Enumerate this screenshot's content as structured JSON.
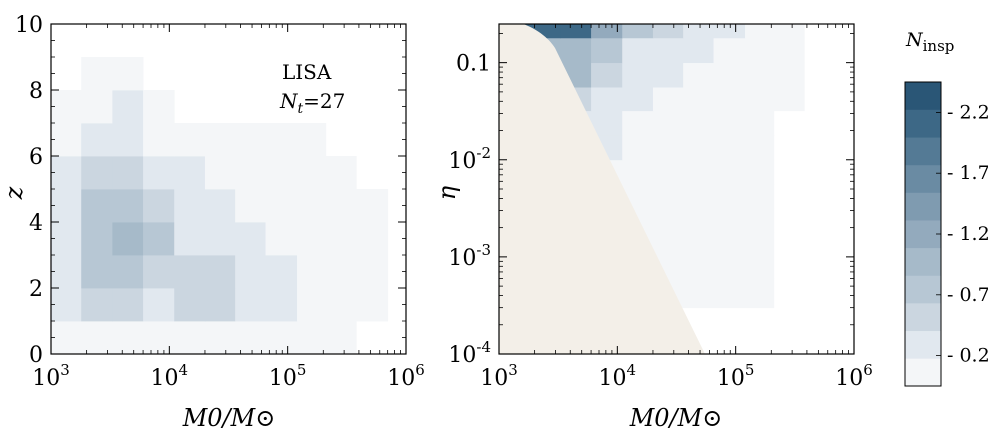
{
  "chart_data": [
    {
      "type": "heatmap",
      "panel": "left",
      "xlabel": "M0/M⊙",
      "ylabel": "z",
      "xscale": "log",
      "xlim": [
        1000,
        1000000
      ],
      "ylim": [
        0,
        10
      ],
      "x_ticks": [
        {
          "base": "10",
          "exp": "3"
        },
        {
          "base": "10",
          "exp": "4"
        },
        {
          "base": "10",
          "exp": "5"
        },
        {
          "base": "10",
          "exp": "6"
        }
      ],
      "y_ticks": [
        "0",
        "2",
        "4",
        "6",
        "8",
        "10"
      ],
      "annotation": {
        "line1": "LISA",
        "line2_symbol": "N",
        "line2_sub": "t",
        "line2_value": "=27"
      },
      "x_bin_edges": [
        1000,
        1800,
        3300,
        6000,
        11000,
        20000,
        36000,
        65000,
        120000,
        210000,
        380000,
        700000
      ],
      "y_bin_edges": [
        0,
        1,
        2,
        3,
        4,
        5,
        6,
        7,
        8,
        9,
        10
      ],
      "cells": [
        [
          0.18,
          0.22,
          0.22,
          0.15,
          0.12,
          0.1,
          0.1,
          0.08,
          0.06,
          0.04,
          0.02
        ],
        [
          0.35,
          0.5,
          0.5,
          0.42,
          0.55,
          0.55,
          0.4,
          0.3,
          0.2,
          0.1,
          0.05
        ],
        [
          0.3,
          0.75,
          0.8,
          0.65,
          0.6,
          0.65,
          0.45,
          0.3,
          0.22,
          0.1,
          0.05
        ],
        [
          0.45,
          0.9,
          1.05,
          0.8,
          0.45,
          0.4,
          0.28,
          0.2,
          0.15,
          0.08,
          0.03
        ],
        [
          0.35,
          0.8,
          0.75,
          0.55,
          0.35,
          0.3,
          0.22,
          0.15,
          0.1,
          0.06,
          0.03
        ],
        [
          0.28,
          0.6,
          0.55,
          0.4,
          0.3,
          0.22,
          0.15,
          0.12,
          0.08,
          0.05,
          0.02
        ],
        [
          0.18,
          0.38,
          0.35,
          0.2,
          0.12,
          0.1,
          0.08,
          0.06,
          0.04,
          0.02,
          0.0
        ],
        [
          0.1,
          0.22,
          0.25,
          0.1,
          0.0,
          0.0,
          0.0,
          0.0,
          0.0,
          0.0,
          0.0
        ],
        [
          0.0,
          0.12,
          0.1,
          0.0,
          0.0,
          0.0,
          0.0,
          0.0,
          0.0,
          0.0,
          0.0
        ],
        [
          0.0,
          0.0,
          0.0,
          0.0,
          0.0,
          0.0,
          0.0,
          0.0,
          0.0,
          0.0,
          0.0
        ]
      ]
    },
    {
      "type": "heatmap",
      "panel": "right",
      "xlabel": "M0/M⊙",
      "ylabel": "η",
      "xscale": "log",
      "yscale": "log",
      "xlim": [
        1000,
        1000000
      ],
      "ylim": [
        0.0001,
        0.25
      ],
      "x_ticks": [
        {
          "base": "10",
          "exp": "3"
        },
        {
          "base": "10",
          "exp": "4"
        },
        {
          "base": "10",
          "exp": "5"
        },
        {
          "base": "10",
          "exp": "6"
        }
      ],
      "y_ticks": [
        {
          "text": "0.1",
          "value": 0.1
        },
        {
          "base": "10",
          "exp": "-2",
          "value": 0.01
        },
        {
          "base": "10",
          "exp": "-3",
          "value": 0.001
        },
        {
          "base": "10",
          "exp": "-4",
          "value": 0.0001
        }
      ],
      "excluded_region_color": "#f3efe8",
      "x_bin_edges": [
        1000,
        1800,
        3300,
        6000,
        11000,
        20000,
        36000,
        65000,
        120000,
        210000,
        380000,
        700000
      ],
      "y_bin_edges": [
        0.0001,
        0.0002,
        0.0003,
        0.0006,
        0.001,
        0.0018,
        0.0032,
        0.0056,
        0.01,
        0.018,
        0.032,
        0.056,
        0.1,
        0.18,
        0.25
      ],
      "cells": [
        [
          0.0,
          0.0,
          0.0,
          0.0,
          0.0,
          0.0,
          0.0,
          0.0,
          0.0,
          0.0,
          0.0
        ],
        [
          0.0,
          0.0,
          0.0,
          0.0,
          0.0,
          0.0,
          0.0,
          0.0,
          0.0,
          0.0,
          0.0
        ],
        [
          0.0,
          0.0,
          0.0,
          0.0,
          0.12,
          0.1,
          0.08,
          0.06,
          0.04,
          0.02,
          0.0
        ],
        [
          0.0,
          0.0,
          0.0,
          0.0,
          0.15,
          0.12,
          0.1,
          0.07,
          0.05,
          0.02,
          0.0
        ],
        [
          0.0,
          0.0,
          0.0,
          0.12,
          0.15,
          0.12,
          0.1,
          0.07,
          0.05,
          0.02,
          0.0
        ],
        [
          0.0,
          0.0,
          0.0,
          0.15,
          0.16,
          0.14,
          0.1,
          0.08,
          0.05,
          0.02,
          0.0
        ],
        [
          0.0,
          0.0,
          0.0,
          0.18,
          0.18,
          0.15,
          0.11,
          0.08,
          0.05,
          0.02,
          0.0
        ],
        [
          0.0,
          0.0,
          0.28,
          0.22,
          0.18,
          0.15,
          0.12,
          0.08,
          0.05,
          0.02,
          0.0
        ],
        [
          0.0,
          0.0,
          0.4,
          0.28,
          0.2,
          0.17,
          0.12,
          0.09,
          0.05,
          0.02,
          0.0
        ],
        [
          0.0,
          0.3,
          0.45,
          0.35,
          0.22,
          0.18,
          0.12,
          0.09,
          0.05,
          0.02,
          0.0
        ],
        [
          0.0,
          0.55,
          0.6,
          0.4,
          0.25,
          0.2,
          0.14,
          0.1,
          0.06,
          0.03,
          0.0
        ],
        [
          0.6,
          0.9,
          1.0,
          0.6,
          0.35,
          0.25,
          0.18,
          0.12,
          0.07,
          0.03,
          0.0
        ],
        [
          1.0,
          1.1,
          1.1,
          0.8,
          0.45,
          0.35,
          0.25,
          0.15,
          0.08,
          0.04,
          0.0
        ],
        [
          2.4,
          2.4,
          2.4,
          1.3,
          0.9,
          0.55,
          0.4,
          0.25,
          0.15,
          0.08,
          0.02
        ]
      ]
    }
  ],
  "colorbar": {
    "title_symbol": "N",
    "title_sub": "insp",
    "labels": [
      "2.25",
      "1.75",
      "1.25",
      "0.75",
      "0.25"
    ],
    "label_values": [
      2.25,
      1.75,
      1.25,
      0.75,
      0.25
    ],
    "levels": [
      0,
      0.25,
      0.5,
      0.75,
      1.0,
      1.25,
      1.5,
      1.75,
      2.0,
      2.25,
      2.5
    ],
    "colors": [
      "#f4f6f8",
      "#e1e8ef",
      "#cbd6e0",
      "#b7c7d4",
      "#a6bac9",
      "#93aabd",
      "#7f9bb0",
      "#6a8ba3",
      "#547a95",
      "#3d6886",
      "#2a5676"
    ]
  }
}
